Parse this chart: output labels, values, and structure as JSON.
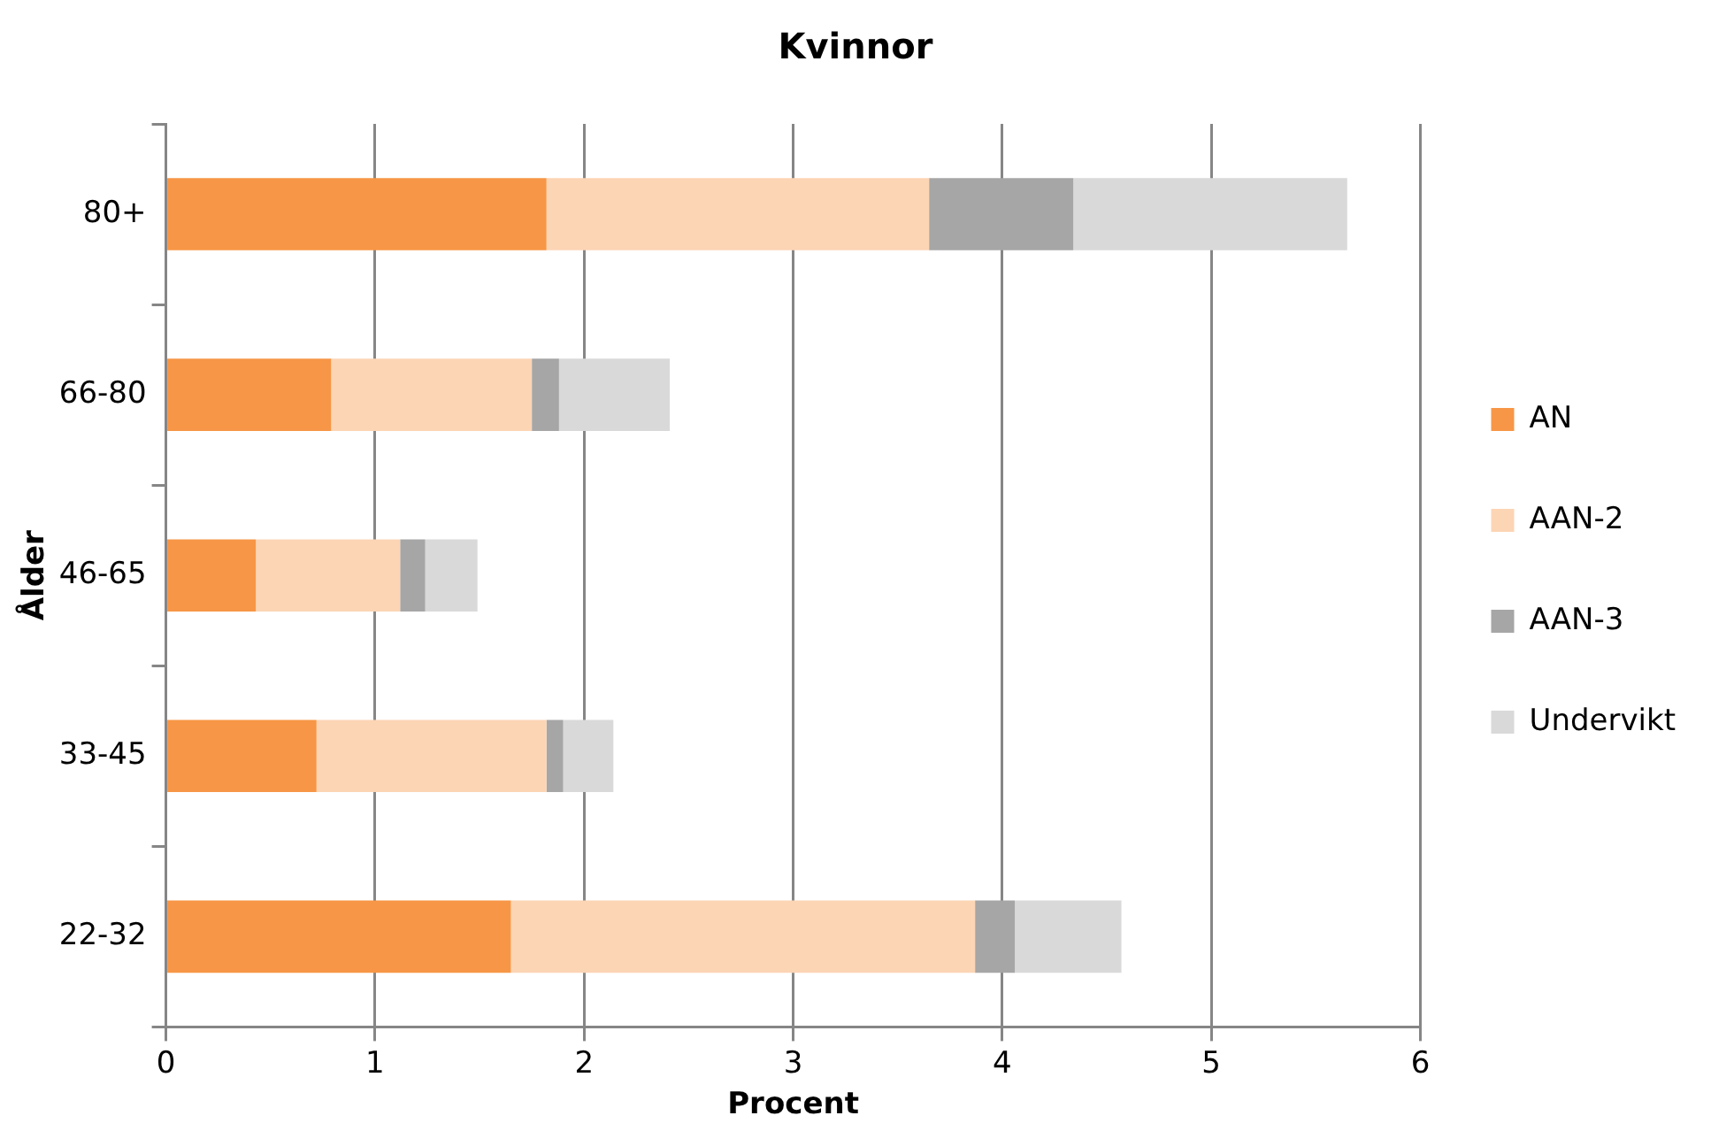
{
  "chart_data": {
    "type": "bar",
    "orientation": "horizontal",
    "stacked": true,
    "title": "Kvinnor",
    "xlabel": "Procent",
    "ylabel": "Ålder",
    "categories": [
      "80+",
      "66-80",
      "46-65",
      "33-45",
      "22-32"
    ],
    "series": [
      {
        "name": "AN",
        "color": "#f79646",
        "values": [
          1.82,
          0.79,
          0.43,
          0.72,
          1.65
        ]
      },
      {
        "name": "AAN-2",
        "color": "#fcd5b5",
        "values": [
          1.83,
          0.96,
          0.69,
          1.1,
          2.22
        ]
      },
      {
        "name": "AAN-3",
        "color": "#a6a6a6",
        "values": [
          0.69,
          0.13,
          0.12,
          0.08,
          0.19
        ]
      },
      {
        "name": "Undervikt",
        "color": "#d9d9d9",
        "values": [
          1.31,
          0.53,
          0.25,
          0.24,
          0.51
        ]
      }
    ],
    "xlim": [
      0,
      6
    ],
    "xticks": [
      0,
      1,
      2,
      3,
      4,
      5,
      6
    ],
    "grid": "x",
    "legend": "right"
  }
}
